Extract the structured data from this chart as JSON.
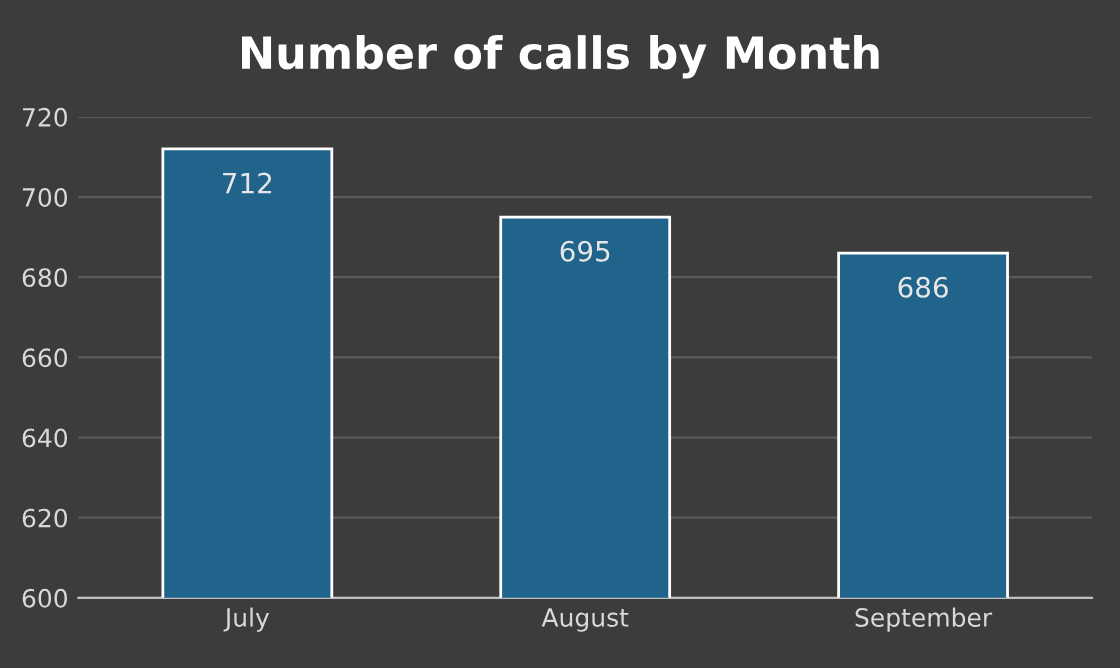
{
  "chart_data": {
    "type": "bar",
    "title": "Number of calls by Month",
    "categories": [
      "July",
      "August",
      "September"
    ],
    "values": [
      712,
      695,
      686
    ],
    "color": "#20648c",
    "ylim": [
      600,
      720
    ],
    "yticks": [
      600,
      620,
      640,
      660,
      680,
      700,
      720
    ],
    "grid": "y",
    "data_labels": true
  }
}
